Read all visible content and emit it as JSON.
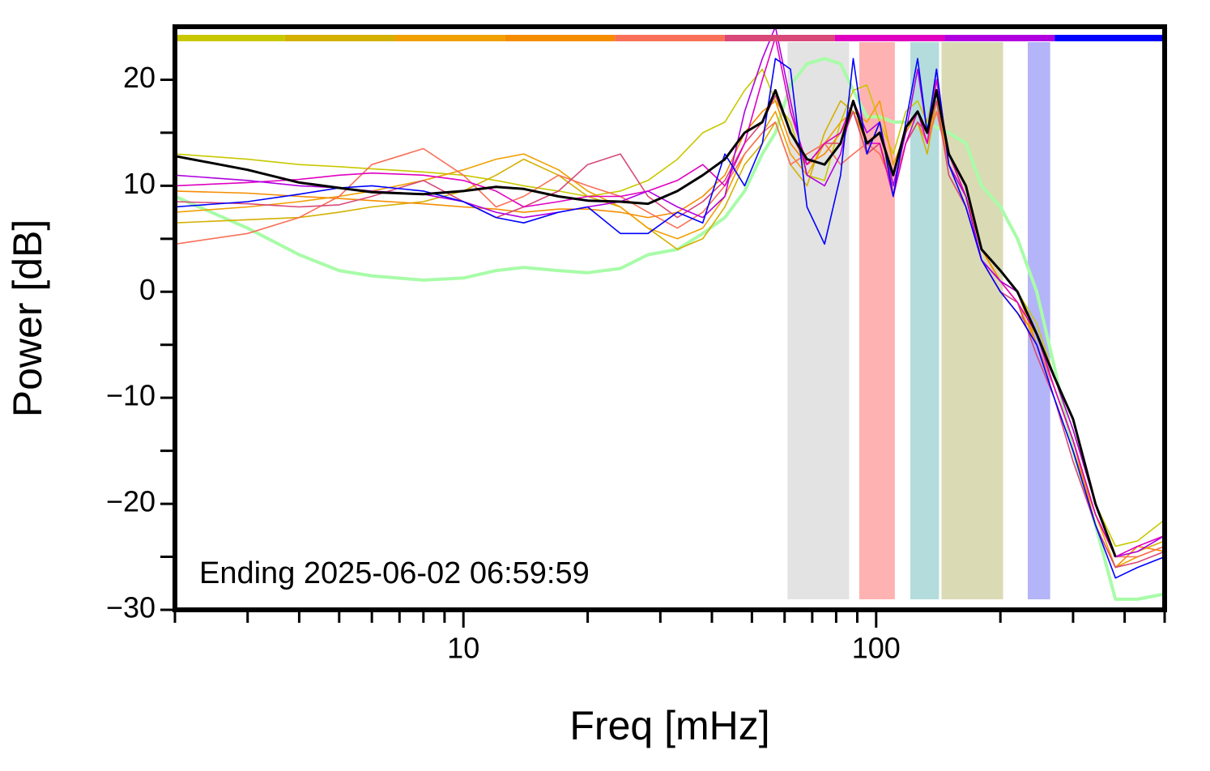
{
  "chart_data": {
    "type": "line",
    "xlabel": "Freq [mHz]",
    "ylabel": "Power [dB]",
    "annotation": "Ending 2025-06-02 06:59:59",
    "log_x": true,
    "xlim": [
      2,
      500
    ],
    "ylim": [
      -30,
      25
    ],
    "xticks": [
      10,
      100
    ],
    "xminor_ticks": [
      2,
      3,
      4,
      5,
      6,
      7,
      8,
      9,
      20,
      30,
      40,
      50,
      60,
      70,
      80,
      90,
      200,
      300,
      400,
      500
    ],
    "yticks": [
      {
        "value": -30,
        "label": "−30"
      },
      {
        "value": -20,
        "label": "−20"
      },
      {
        "value": -10,
        "label": "−10"
      },
      0,
      10,
      20
    ],
    "yminor_ticks": [
      -25,
      -15,
      -5,
      5,
      15
    ],
    "bands": [
      {
        "xrange": [
          61,
          86
        ],
        "color": "#e3e3e3"
      },
      {
        "xrange": [
          91,
          111
        ],
        "color": "#ffb2b2"
      },
      {
        "xrange": [
          121,
          142
        ],
        "color": "#b4dcdc"
      },
      {
        "xrange": [
          144,
          203
        ],
        "color": "#dadab4"
      },
      {
        "xrange": [
          233,
          264
        ],
        "color": "#b4b4f8"
      }
    ],
    "x": [
      2,
      3,
      4,
      5,
      6,
      8,
      10,
      12,
      14,
      17,
      20,
      24,
      28,
      33,
      38,
      43,
      48,
      53,
      57,
      62,
      68,
      75,
      82,
      88,
      95,
      102,
      110,
      118,
      126,
      133,
      140,
      150,
      165,
      180,
      200,
      220,
      245,
      270,
      300,
      340,
      380,
      430,
      500
    ],
    "series": [
      {
        "color": "#a8fca8",
        "width": 4,
        "values": [
          9,
          6,
          3.5,
          2,
          1.5,
          1.1,
          1.3,
          2,
          2.3,
          2,
          1.8,
          2.2,
          3.5,
          4,
          5.5,
          7,
          9.5,
          13,
          15,
          19.5,
          21.5,
          22,
          21.5,
          19,
          16.5,
          16.5,
          16,
          16,
          15.5,
          16,
          15.5,
          15,
          14,
          10,
          8,
          5,
          0,
          -7,
          -15,
          -22,
          -29,
          -29,
          -28.5
        ]
      },
      {
        "color": "#c8c800",
        "width": 1.6,
        "values": [
          13,
          12.5,
          12,
          11.8,
          11.6,
          11.3,
          11,
          10.5,
          10,
          9.5,
          9,
          9.5,
          10.5,
          12.5,
          15,
          16,
          19,
          21,
          18,
          16,
          11,
          10.5,
          16,
          19,
          19.5,
          16,
          13,
          17,
          18,
          16,
          20,
          13,
          10,
          4,
          2,
          0,
          -3,
          -8,
          -13,
          -20,
          -24,
          -23.5,
          -21.5
        ]
      },
      {
        "color": "#d4b000",
        "width": 1.6,
        "values": [
          6.5,
          6.8,
          7,
          7.5,
          8,
          8.5,
          9.5,
          11,
          12.5,
          11,
          9,
          8,
          6,
          4,
          5,
          8,
          12,
          14,
          16,
          12,
          10,
          15,
          18,
          17,
          13,
          14,
          10,
          14,
          16,
          13,
          18,
          12,
          9,
          3,
          0,
          -2,
          -4,
          -9,
          -14,
          -21,
          -25,
          -24.5,
          -23.5
        ]
      },
      {
        "color": "#f0a000",
        "width": 1.6,
        "values": [
          7.5,
          8,
          8.5,
          9,
          9.5,
          10.5,
          11.5,
          12.5,
          13,
          11.5,
          9.5,
          8,
          6,
          5,
          6,
          9,
          13,
          15,
          17,
          13,
          11,
          14,
          16,
          17,
          16,
          18,
          12,
          15,
          17,
          14,
          18,
          13,
          9,
          4,
          1,
          -1,
          -5,
          -10,
          -15,
          -21,
          -26,
          -25,
          -24
        ]
      },
      {
        "color": "#f58c00",
        "width": 1.6,
        "values": [
          9.5,
          9.3,
          9,
          8.8,
          8.6,
          8.3,
          8,
          7.8,
          7.5,
          7.8,
          7.8,
          7.5,
          7,
          7.5,
          9,
          11,
          15,
          17,
          18,
          14,
          12,
          13,
          15,
          17,
          14,
          15,
          11,
          15,
          17,
          15,
          19,
          12,
          9,
          4,
          1,
          0,
          -5,
          -9,
          -14,
          -22,
          -26,
          -24,
          -24.5
        ]
      },
      {
        "color": "#f87058",
        "width": 1.6,
        "values": [
          4.5,
          5.5,
          7,
          9,
          12,
          13.5,
          11,
          8,
          9,
          11,
          10,
          9,
          7.5,
          6,
          7.5,
          10,
          13,
          15,
          16,
          12,
          13,
          14,
          12,
          13,
          14,
          13,
          10,
          14,
          16,
          14,
          17,
          12,
          8,
          3,
          0,
          -2,
          -5,
          -9,
          -14,
          -21,
          -25,
          -25,
          -24
        ]
      },
      {
        "color": "#d84878",
        "width": 1.6,
        "values": [
          8.5,
          8.3,
          8,
          8.2,
          9,
          10.5,
          8.5,
          7,
          8,
          9.5,
          12,
          13,
          9,
          7,
          8.5,
          10.5,
          14,
          16,
          18.5,
          15,
          12,
          14,
          14,
          17,
          13,
          14,
          9,
          14,
          16,
          15,
          18,
          11,
          8,
          3,
          0,
          -1,
          -6,
          -10,
          -16,
          -22,
          -26,
          -25.5,
          -24.5
        ]
      },
      {
        "color": "#e000c0",
        "width": 1.6,
        "values": [
          10,
          10.3,
          10.6,
          11,
          11.2,
          11,
          10.5,
          9.5,
          8,
          8.5,
          9,
          9,
          9.5,
          10.5,
          12,
          10,
          14,
          20,
          24,
          17,
          12,
          14,
          15,
          18,
          14,
          14,
          9,
          14,
          17,
          14,
          20,
          13,
          9,
          3,
          1,
          -1,
          -4,
          -9,
          -14,
          -21,
          -25,
          -24,
          -23
        ]
      },
      {
        "color": "#b000e0",
        "width": 1.6,
        "values": [
          11,
          10.5,
          10,
          9.8,
          9.5,
          9.2,
          8.5,
          7.5,
          7,
          7.5,
          8,
          8.5,
          9.5,
          8,
          7,
          9,
          17,
          22,
          25,
          18,
          11,
          10,
          13,
          18,
          15,
          16,
          10,
          15,
          21,
          15,
          21,
          12,
          9,
          3,
          1,
          0,
          -4,
          -8,
          -13,
          -20,
          -25,
          -24.5,
          -23
        ]
      },
      {
        "color": "#0000ff",
        "width": 1.6,
        "values": [
          8,
          8.5,
          9.2,
          9.8,
          10,
          9.5,
          8.5,
          7,
          6.5,
          7.5,
          8,
          5.5,
          5.5,
          7.5,
          6.5,
          13,
          10,
          14,
          22,
          21,
          8,
          4.5,
          11,
          22,
          13,
          16,
          9,
          16,
          22,
          15,
          21,
          12,
          8,
          3,
          0,
          -2,
          -5,
          -10,
          -15,
          -22,
          -27,
          -26,
          -25
        ]
      },
      {
        "color": "#000000",
        "width": 3,
        "values": [
          12.8,
          11.5,
          10.3,
          9.8,
          9.4,
          9.2,
          9.5,
          9.9,
          9.7,
          9,
          8.6,
          8.5,
          8.3,
          9.5,
          11,
          12.5,
          15,
          16,
          19,
          15,
          12.5,
          12,
          14,
          18,
          14,
          15,
          11,
          15.5,
          17,
          15,
          19,
          13,
          10,
          4,
          2,
          0,
          -4,
          -8,
          -12,
          -20,
          -25,
          null,
          null
        ]
      }
    ]
  }
}
